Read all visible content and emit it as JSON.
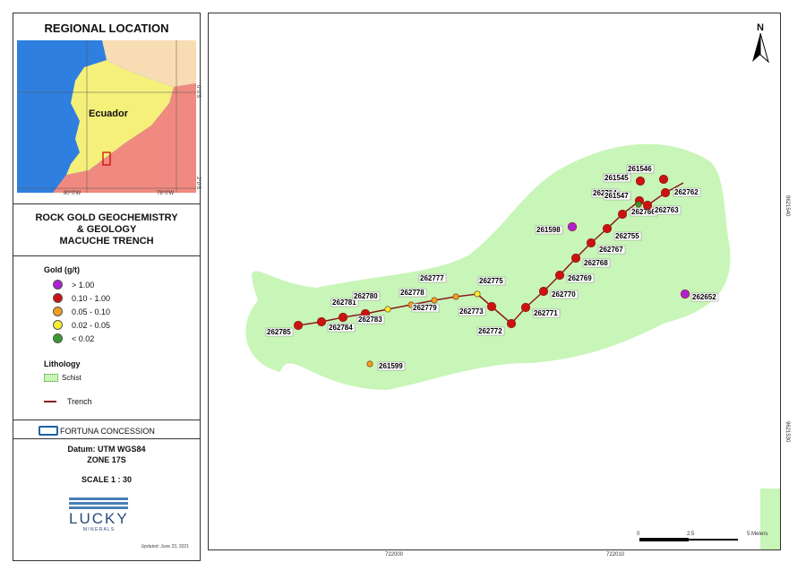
{
  "inset": {
    "title": "REGIONAL LOCATION",
    "country_label": "Ecuador",
    "lat_ticks": [
      "0°0'S",
      "2°0'S"
    ],
    "lon_ticks": [
      "80°0'W",
      "78°0'W"
    ],
    "colors": {
      "ocean": "#2f7fe0",
      "ecuador": "#f4f07a",
      "peru": "#f08a80",
      "colombia": "#f8dcb4"
    }
  },
  "legend_title": [
    "ROCK GOLD GEOCHEMISTRY",
    "& GEOLOGY",
    "MACUCHE TRENCH"
  ],
  "legend": {
    "gold_heading": "Gold (g/t)",
    "gold_classes": [
      {
        "label": "> 1.00",
        "color": "#b020d0"
      },
      {
        "label": "0.10 - 1.00",
        "color": "#cc1111"
      },
      {
        "label": "0.05 - 0.10",
        "color": "#f0a020"
      },
      {
        "label": "0.02 - 0.05",
        "color": "#f6f030"
      },
      {
        "label": "< 0.02",
        "color": "#3a9a30"
      }
    ],
    "lithology_heading": "Lithology",
    "schist_label": "Schist",
    "trench_label": "Trench",
    "concession_label": "FORTUNA CONCESSION"
  },
  "datum": {
    "line1": "Datum: UTM  WGS84",
    "line2": "ZONE 17S",
    "scale": "SCALE  1  :  30"
  },
  "logo": {
    "word": "LUCKY",
    "sub": "M I N E R A L S",
    "updated": "Updated: June 23, 2021"
  },
  "map": {
    "north": "N",
    "x_ticks": [
      "722000",
      "722010"
    ],
    "y_ticks": [
      "9621540",
      "9621530"
    ],
    "scale_labels": [
      "0",
      "2.5",
      "5 Meters"
    ],
    "colors": {
      "schist": "#c8f5b8",
      "trench": "#8b1a1a"
    },
    "samples": [
      {
        "id": "262785",
        "grade": "0.10 - 1.00"
      },
      {
        "id": "262784",
        "grade": "0.10 - 1.00"
      },
      {
        "id": "262781",
        "grade": "0.10 - 1.00"
      },
      {
        "id": "262783",
        "grade": "0.10 - 1.00"
      },
      {
        "id": "262780",
        "grade": "0.02 - 0.05"
      },
      {
        "id": "262778",
        "grade": "0.05 - 0.10"
      },
      {
        "id": "262779",
        "grade": "0.05 - 0.10"
      },
      {
        "id": "262777",
        "grade": "0.05 - 0.10"
      },
      {
        "id": "262775",
        "grade": "0.02 - 0.05"
      },
      {
        "id": "262773",
        "grade": "0.10 - 1.00"
      },
      {
        "id": "262772",
        "grade": "0.10 - 1.00"
      },
      {
        "id": "262771",
        "grade": "0.10 - 1.00"
      },
      {
        "id": "262770",
        "grade": "0.10 - 1.00"
      },
      {
        "id": "262769",
        "grade": "0.10 - 1.00"
      },
      {
        "id": "262768",
        "grade": "0.10 - 1.00"
      },
      {
        "id": "262767",
        "grade": "0.10 - 1.00"
      },
      {
        "id": "262755",
        "grade": "0.10 - 1.00"
      },
      {
        "id": "262766",
        "grade": "0.10 - 1.00"
      },
      {
        "id": "262764",
        "grade": "0.10 - 1.00"
      },
      {
        "id": "262763",
        "grade": "0.10 - 1.00"
      },
      {
        "id": "262762",
        "grade": "0.10 - 1.00"
      },
      {
        "id": "261547",
        "grade": "< 0.02"
      },
      {
        "id": "261545",
        "grade": "0.10 - 1.00"
      },
      {
        "id": "261546",
        "grade": "0.10 - 1.00"
      },
      {
        "id": "261598",
        "grade": "> 1.00"
      },
      {
        "id": "262652",
        "grade": "> 1.00"
      },
      {
        "id": "261599",
        "grade": "0.05 - 0.10"
      }
    ]
  }
}
